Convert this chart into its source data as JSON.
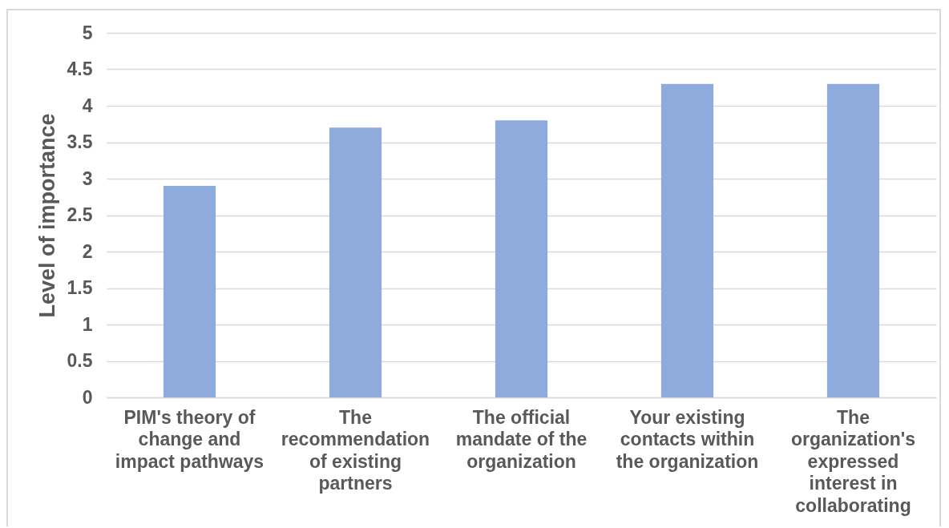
{
  "chart_data": {
    "type": "bar",
    "ylabel": "Level of importance",
    "categories": [
      "PIM's theory of change and impact pathways",
      "The recommendation of existing partners",
      "The official mandate of the organization",
      "Your existing contacts within the organization",
      "The organization's expressed interest in collaborating"
    ],
    "values": [
      2.9,
      3.7,
      3.8,
      4.3,
      4.3
    ],
    "color": "#8faadc",
    "ylim": [
      0,
      5
    ],
    "yticks": [
      0,
      0.5,
      1,
      1.5,
      2,
      2.5,
      3,
      3.5,
      4,
      4.5,
      5
    ],
    "grid": "y"
  }
}
